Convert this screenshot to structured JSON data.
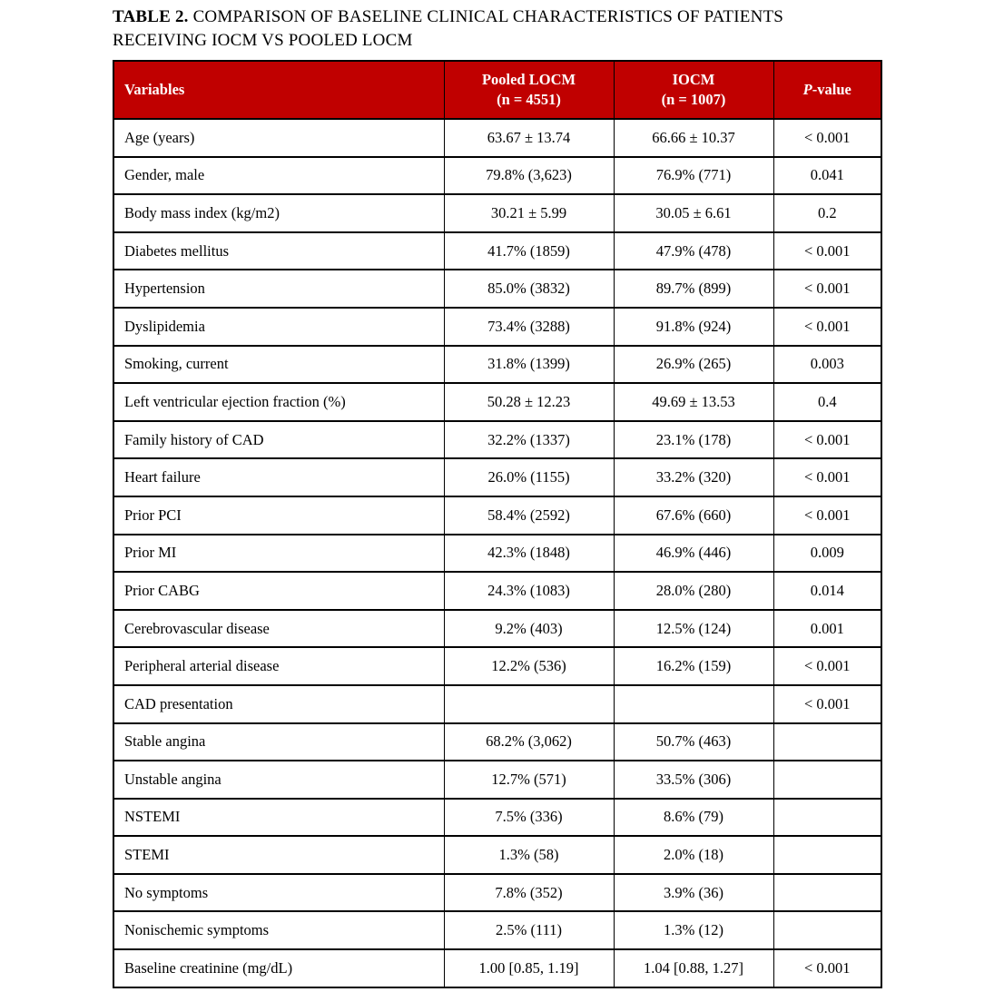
{
  "caption": {
    "label": "TABLE 2.",
    "line1": "COMPARISON OF BASELINE CLINICAL CHARACTERISTICS OF PATIENTS",
    "line2": "RECEIVING IOCM VS POOLED LOCM"
  },
  "colors": {
    "header_background": "#C00000",
    "header_text": "#FFFFFF",
    "border": "#000000",
    "body_text": "#000000"
  },
  "table": {
    "headers": {
      "variables": "Variables",
      "pooled_locm_line1": "Pooled LOCM",
      "pooled_locm_line2": "(n = 4551)",
      "iocm_line1": "IOCM",
      "iocm_line2": "(n = 1007)",
      "p_italic": "P",
      "p_rest": "-value"
    },
    "rows": [
      {
        "variable": "Age (years)",
        "locm": "63.67 ± 13.74",
        "iocm": "66.66 ± 10.37",
        "p": "< 0.001"
      },
      {
        "variable": "Gender, male",
        "locm": "79.8% (3,623)",
        "iocm": "76.9% (771)",
        "p": "0.041"
      },
      {
        "variable": "Body mass index (kg/m2)",
        "locm": "30.21 ± 5.99",
        "iocm": "30.05 ± 6.61",
        "p": "0.2"
      },
      {
        "variable": "Diabetes mellitus",
        "locm": "41.7% (1859)",
        "iocm": "47.9% (478)",
        "p": "< 0.001"
      },
      {
        "variable": "Hypertension",
        "locm": "85.0% (3832)",
        "iocm": "89.7% (899)",
        "p": "< 0.001"
      },
      {
        "variable": "Dyslipidemia",
        "locm": "73.4% (3288)",
        "iocm": "91.8% (924)",
        "p": "< 0.001"
      },
      {
        "variable": "Smoking, current",
        "locm": "31.8% (1399)",
        "iocm": "26.9% (265)",
        "p": "0.003"
      },
      {
        "variable": "Left ventricular ejection fraction (%)",
        "locm": "50.28 ± 12.23",
        "iocm": "49.69 ± 13.53",
        "p": "0.4"
      },
      {
        "variable": "Family history of CAD",
        "locm": "32.2% (1337)",
        "iocm": "23.1% (178)",
        "p": "< 0.001"
      },
      {
        "variable": "Heart failure",
        "locm": "26.0% (1155)",
        "iocm": "33.2% (320)",
        "p": "< 0.001"
      },
      {
        "variable": "Prior PCI",
        "locm": "58.4% (2592)",
        "iocm": "67.6% (660)",
        "p": "< 0.001"
      },
      {
        "variable": "Prior MI",
        "locm": "42.3% (1848)",
        "iocm": "46.9% (446)",
        "p": "0.009"
      },
      {
        "variable": "Prior CABG",
        "locm": "24.3% (1083)",
        "iocm": "28.0% (280)",
        "p": "0.014"
      },
      {
        "variable": "Cerebrovascular disease",
        "locm": "9.2% (403)",
        "iocm": "12.5% (124)",
        "p": "0.001"
      },
      {
        "variable": "Peripheral arterial disease",
        "locm": "12.2% (536)",
        "iocm": "16.2% (159)",
        "p": "< 0.001"
      },
      {
        "variable": "CAD presentation",
        "locm": "",
        "iocm": "",
        "p": "< 0.001"
      },
      {
        "variable": "Stable angina",
        "locm": "68.2% (3,062)",
        "iocm": "50.7% (463)",
        "p": ""
      },
      {
        "variable": "Unstable angina",
        "locm": "12.7% (571)",
        "iocm": "33.5% (306)",
        "p": ""
      },
      {
        "variable": "NSTEMI",
        "locm": "7.5% (336)",
        "iocm": "8.6% (79)",
        "p": ""
      },
      {
        "variable": "STEMI",
        "locm": "1.3% (58)",
        "iocm": "2.0% (18)",
        "p": ""
      },
      {
        "variable": "No symptoms",
        "locm": "7.8% (352)",
        "iocm": "3.9% (36)",
        "p": ""
      },
      {
        "variable": "Nonischemic symptoms",
        "locm": "2.5% (111)",
        "iocom_note": "",
        "iocm": "1.3% (12)",
        "p": ""
      },
      {
        "variable": "Baseline creatinine (mg/dL)",
        "locm": "1.00 [0.85, 1.19]",
        "iocm": "1.04 [0.88, 1.27]",
        "p": "< 0.001"
      }
    ]
  }
}
